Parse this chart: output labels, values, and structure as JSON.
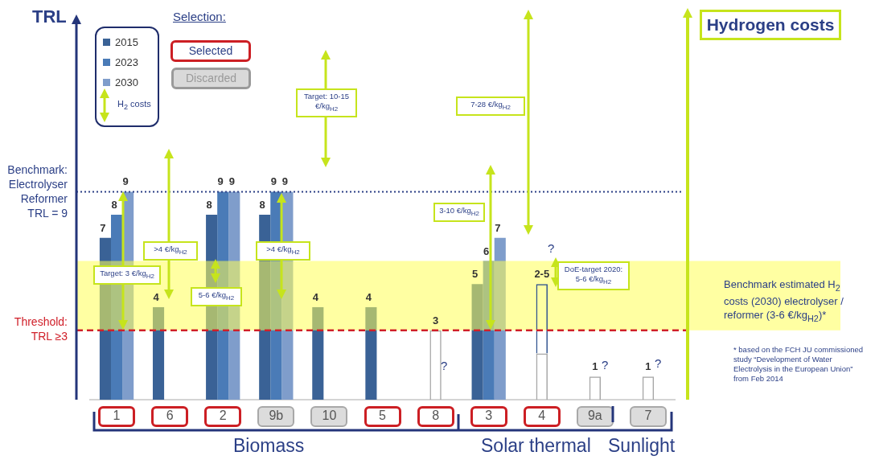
{
  "chart_data": {
    "type": "bar",
    "ylabel": "TRL",
    "categories": [
      "1",
      "6",
      "2",
      "9b",
      "10",
      "5",
      "8",
      "3",
      "4",
      "9a",
      "7"
    ],
    "ylim": [
      0,
      16.6
    ],
    "tick_labels": "x",
    "legend": "top left",
    "series": [
      {
        "name": "2015",
        "color": "#3a6296",
        "values": [
          7,
          4,
          8,
          8,
          4,
          4,
          null,
          5,
          null,
          null,
          null
        ],
        "value_labels": [
          "7",
          "4",
          "8",
          "8",
          "4",
          "4",
          null,
          "5",
          null,
          null,
          null
        ]
      },
      {
        "name": "2023",
        "color": "#4a7bb7",
        "values": [
          8,
          null,
          9,
          9,
          null,
          null,
          null,
          6,
          null,
          null,
          null
        ],
        "value_labels": [
          "8",
          null,
          "9",
          "9",
          null,
          null,
          null,
          "6",
          null,
          null,
          null
        ]
      },
      {
        "name": "2030",
        "color": "#7f9dcb",
        "values": [
          9,
          null,
          9,
          9,
          null,
          null,
          null,
          7,
          null,
          null,
          null
        ],
        "value_labels": [
          "9",
          null,
          "9",
          "9",
          null,
          null,
          null,
          "7",
          null,
          null,
          null
        ]
      },
      {
        "color": "#a6a6a6",
        "values": [
          null,
          null,
          null,
          null,
          null,
          null,
          3,
          null,
          2,
          1,
          1
        ],
        "value_labels": [
          null,
          null,
          null,
          null,
          null,
          null,
          "3",
          null,
          null,
          "1",
          "1"
        ]
      },
      {
        "color": "#2f528f",
        "base": [
          null,
          null,
          null,
          null,
          null,
          null,
          null,
          null,
          2,
          null,
          null
        ],
        "values": [
          null,
          null,
          null,
          null,
          null,
          null,
          null,
          null,
          3,
          null,
          null
        ],
        "value_labels": [
          null,
          null,
          null,
          null,
          null,
          null,
          null,
          null,
          "2-5",
          null,
          null
        ]
      }
    ],
    "ref_lines": [
      {
        "axis": "y",
        "value": 9,
        "label": "Benchmark: Electrolyser Reformer TRL = 9",
        "color": "#2b3f86",
        "line_style": "dotted"
      },
      {
        "axis": "y",
        "value": 3,
        "label": "Threshold: TRL ≥3",
        "color": "#d0202a",
        "line_style": "dashed"
      }
    ],
    "bands": [
      {
        "axis": "y",
        "from": 3,
        "to": 6,
        "label": "Benchmark estimated H$_{2}$ costs (2030) electrolyser / reformer (3-6 €/kg$_{H2}$)*",
        "color": "#ffff55"
      }
    ],
    "annotations": [
      "Selection:",
      "Selected",
      "Discarded",
      "H$_{2}$ costs",
      "Target: 3 €/kg$_{H2}$",
      ">4 €/kg$_{H2}$",
      "5-6 €/kg$_{H2}$",
      ">4 €/kg$_{H2}$",
      "Target: 10-15 €/kg$_{H2}$",
      "3-10 €/kg$_{H2}$",
      "7-28 €/kg$_{H2}$",
      "DoE-target 2020: 5-6 €/kg$_{H2}$",
      "Hydrogen costs",
      "Biomass",
      "Solar thermal",
      "Sunlight",
      "* based on the FCH JU commissioned study “Development of Water Electrolysis in the European Union” from Feb 2014",
      "?",
      "?",
      "?",
      "?"
    ]
  }
}
